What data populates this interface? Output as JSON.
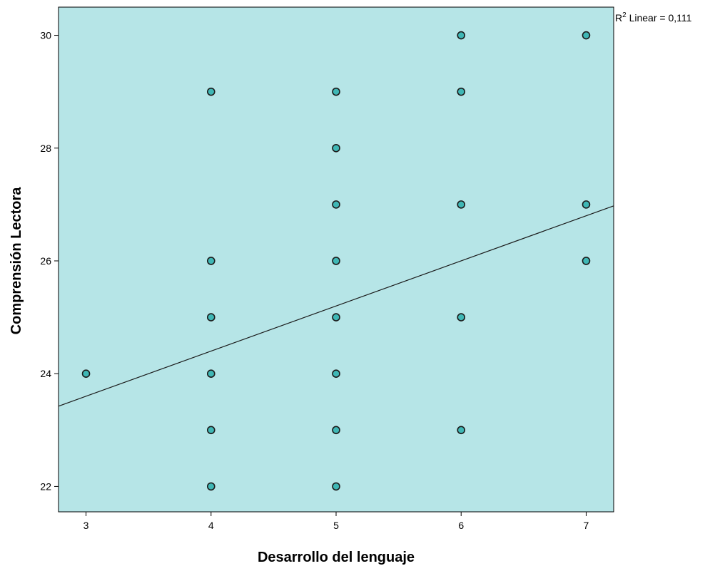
{
  "chart_data": {
    "type": "scatter",
    "title": "",
    "xlabel": "Desarrollo del lenguaje",
    "ylabel": "Comprensión Lectora",
    "xlim": [
      2.78,
      7.22
    ],
    "ylim": [
      21.55,
      30.5
    ],
    "x_ticks": [
      3,
      4,
      5,
      6,
      7
    ],
    "y_ticks": [
      22,
      24,
      26,
      28,
      30
    ],
    "points": [
      {
        "x": 3,
        "y": 24
      },
      {
        "x": 4,
        "y": 29
      },
      {
        "x": 4,
        "y": 26
      },
      {
        "x": 4,
        "y": 25
      },
      {
        "x": 4,
        "y": 24
      },
      {
        "x": 4,
        "y": 23
      },
      {
        "x": 4,
        "y": 22
      },
      {
        "x": 5,
        "y": 29
      },
      {
        "x": 5,
        "y": 28
      },
      {
        "x": 5,
        "y": 27
      },
      {
        "x": 5,
        "y": 26
      },
      {
        "x": 5,
        "y": 25
      },
      {
        "x": 5,
        "y": 24
      },
      {
        "x": 5,
        "y": 23
      },
      {
        "x": 5,
        "y": 22
      },
      {
        "x": 6,
        "y": 30
      },
      {
        "x": 6,
        "y": 29
      },
      {
        "x": 6,
        "y": 27
      },
      {
        "x": 6,
        "y": 25
      },
      {
        "x": 6,
        "y": 23
      },
      {
        "x": 7,
        "y": 30
      },
      {
        "x": 7,
        "y": 27
      },
      {
        "x": 7,
        "y": 26
      }
    ],
    "fit_line": {
      "intercept": 21.2,
      "slope": 0.8
    },
    "annotation": {
      "main": "R",
      "sup": "2",
      "rest": " Linear = 0,111"
    },
    "colors": {
      "plot_background": "#b6e5e7",
      "marker_fill": "#3fb7b5",
      "marker_edge": "#1a1a1a",
      "fit_line": "#1a1a1a",
      "axis": "#000000"
    },
    "grid": false
  }
}
